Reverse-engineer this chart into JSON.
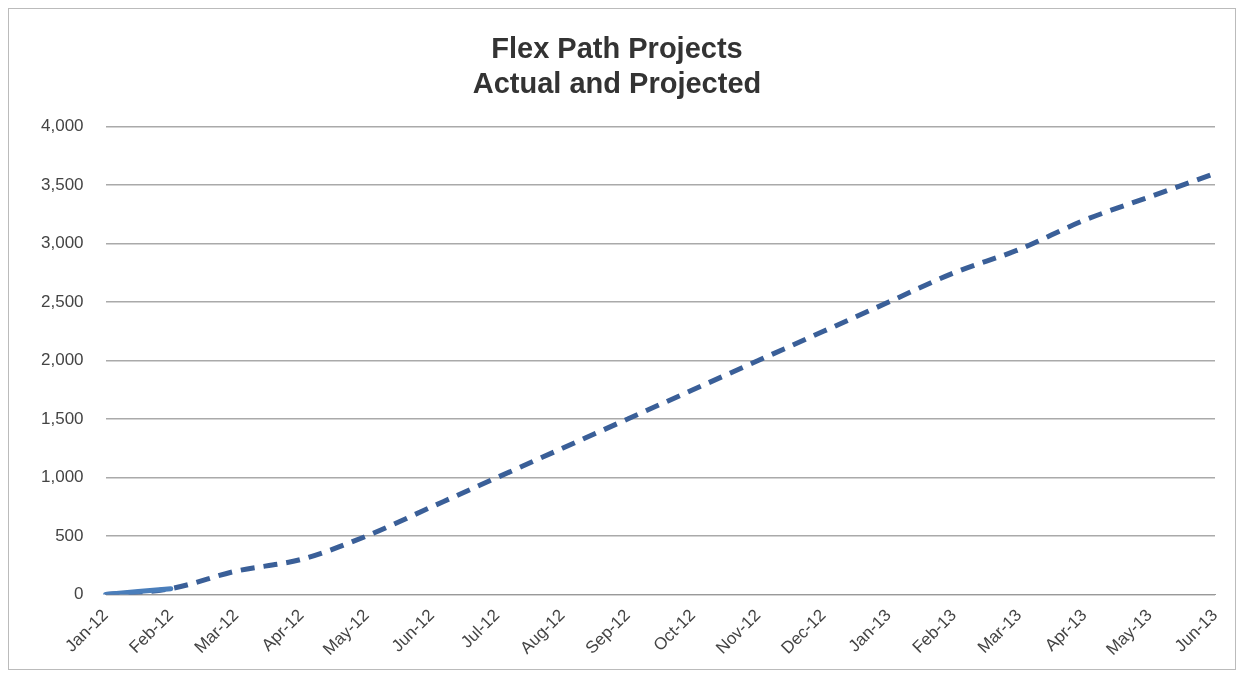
{
  "chart_data": {
    "type": "line",
    "title": [
      "Flex Path Projects",
      "Actual and Projected"
    ],
    "categories": [
      "Jan-12",
      "Feb-12",
      "Mar-12",
      "Apr-12",
      "May-12",
      "Jun-12",
      "Jul-12",
      "Aug-12",
      "Sep-12",
      "Oct-12",
      "Nov-12",
      "Dec-12",
      "Jan-13",
      "Feb-13",
      "Mar-13",
      "Apr-13",
      "May-13",
      "Jun-13"
    ],
    "series": [
      {
        "color": "#4a7ebb",
        "line_style": "solid",
        "values": [
          0,
          50,
          null,
          null,
          null,
          null,
          null,
          null,
          null,
          null,
          null,
          null,
          null,
          null,
          null,
          null,
          null,
          null
        ]
      },
      {
        "color": "#3a5f98",
        "line_style": "dashed",
        "values": [
          0,
          50,
          200,
          300,
          500,
          750,
          1000,
          1250,
          1500,
          1750,
          2000,
          2250,
          2500,
          2750,
          2950,
          3200,
          3400,
          3600
        ]
      }
    ],
    "ylim": [
      0,
      4000
    ],
    "yticks": [
      0,
      500,
      {
        "value": 1000,
        "label": "1,000"
      },
      {
        "value": 1500,
        "label": "1,500"
      },
      {
        "value": 2000,
        "label": "2,000"
      },
      {
        "value": 2500,
        "label": "2,500"
      },
      {
        "value": 3000,
        "label": "3,000"
      },
      {
        "value": 3500,
        "label": "3,500"
      },
      {
        "value": 4000,
        "label": "4,000"
      }
    ],
    "grid": "y",
    "legend": false,
    "marker": "none"
  }
}
